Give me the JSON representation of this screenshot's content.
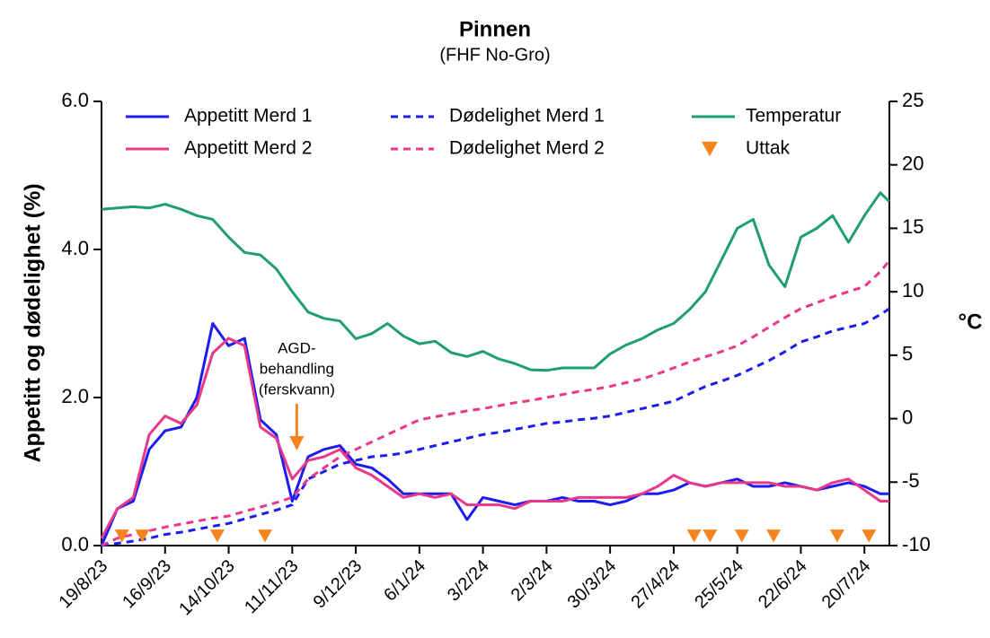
{
  "chart_data": {
    "type": "line",
    "title": "Pinnen",
    "subtitle": "(FHF No-Gro)",
    "y_label": "Appetitt og dødelighet (%)",
    "y2_label": "°C",
    "x": [
      "2023-08-19",
      "2023-08-26",
      "2023-09-02",
      "2023-09-09",
      "2023-09-16",
      "2023-09-23",
      "2023-09-30",
      "2023-10-07",
      "2023-10-14",
      "2023-10-21",
      "2023-10-28",
      "2023-11-04",
      "2023-11-11",
      "2023-11-18",
      "2023-11-25",
      "2023-12-02",
      "2023-12-09",
      "2023-12-16",
      "2023-12-23",
      "2023-12-30",
      "2024-01-06",
      "2024-01-13",
      "2024-01-20",
      "2024-01-27",
      "2024-02-03",
      "2024-02-10",
      "2024-02-17",
      "2024-02-24",
      "2024-03-02",
      "2024-03-09",
      "2024-03-16",
      "2024-03-23",
      "2024-03-30",
      "2024-04-06",
      "2024-04-13",
      "2024-04-20",
      "2024-04-27",
      "2024-05-04",
      "2024-05-11",
      "2024-05-18",
      "2024-05-25",
      "2024-06-01",
      "2024-06-08",
      "2024-06-15",
      "2024-06-22",
      "2024-06-29",
      "2024-07-06",
      "2024-07-13",
      "2024-07-20",
      "2024-07-27",
      "2024-07-31"
    ],
    "xlim": [
      "2023-08-19",
      "2024-07-31"
    ],
    "xticks": [
      {
        "value": "2023-08-19",
        "label": "19/8/23"
      },
      {
        "value": "2023-09-16",
        "label": "16/9/23"
      },
      {
        "value": "2023-10-14",
        "label": "14/10/23"
      },
      {
        "value": "2023-11-11",
        "label": "11/11/23"
      },
      {
        "value": "2023-12-09",
        "label": "9/12/23"
      },
      {
        "value": "2024-01-06",
        "label": "6/1/24"
      },
      {
        "value": "2024-02-03",
        "label": "3/2/24"
      },
      {
        "value": "2024-03-02",
        "label": "2/3/24"
      },
      {
        "value": "2024-03-30",
        "label": "30/3/24"
      },
      {
        "value": "2024-04-27",
        "label": "27/4/24"
      },
      {
        "value": "2024-05-25",
        "label": "25/5/24"
      },
      {
        "value": "2024-06-22",
        "label": "22/6/24"
      },
      {
        "value": "2024-07-20",
        "label": "20/7/24"
      }
    ],
    "ylim": [
      0,
      6
    ],
    "yticks": [
      {
        "value": 0,
        "label": "0.0"
      },
      {
        "value": 2,
        "label": "2.0"
      },
      {
        "value": 4,
        "label": "4.0"
      },
      {
        "value": 6,
        "label": "6.0"
      }
    ],
    "y2lim": [
      -10,
      25
    ],
    "y2ticks": [
      -10,
      -5,
      0,
      5,
      10,
      15,
      20,
      25
    ],
    "series": [
      {
        "name": "Appetitt Merd 1",
        "color": "#1c1cf0",
        "style": "solid",
        "values": [
          0.0,
          0.5,
          0.6,
          1.3,
          1.55,
          1.6,
          2.0,
          3.0,
          2.7,
          2.8,
          1.7,
          1.5,
          0.6,
          1.2,
          1.3,
          1.35,
          1.1,
          1.05,
          0.9,
          0.7,
          0.7,
          0.7,
          0.7,
          0.35,
          0.65,
          0.6,
          0.55,
          0.6,
          0.6,
          0.65,
          0.6,
          0.6,
          0.55,
          0.6,
          0.7,
          0.7,
          0.75,
          0.85,
          0.8,
          0.85,
          0.9,
          0.8,
          0.8,
          0.85,
          0.8,
          0.75,
          0.8,
          0.85,
          0.8,
          0.7,
          0.7
        ]
      },
      {
        "name": "Appetitt Merd 2",
        "color": "#e8388a",
        "style": "solid",
        "values": [
          0.1,
          0.5,
          0.65,
          1.5,
          1.75,
          1.65,
          1.9,
          2.6,
          2.8,
          2.7,
          1.6,
          1.45,
          0.9,
          1.15,
          1.2,
          1.3,
          1.05,
          0.95,
          0.8,
          0.65,
          0.7,
          0.65,
          0.7,
          0.55,
          0.55,
          0.55,
          0.5,
          0.6,
          0.6,
          0.6,
          0.65,
          0.65,
          0.65,
          0.65,
          0.7,
          0.8,
          0.95,
          0.85,
          0.8,
          0.85,
          0.85,
          0.85,
          0.85,
          0.8,
          0.8,
          0.75,
          0.85,
          0.9,
          0.75,
          0.6,
          0.6
        ]
      },
      {
        "name": "Dødelighet Merd 1",
        "color": "#1c1cf0",
        "style": "dashed",
        "values": [
          0.0,
          0.03,
          0.06,
          0.1,
          0.15,
          0.18,
          0.22,
          0.26,
          0.3,
          0.36,
          0.42,
          0.48,
          0.55,
          0.9,
          1.0,
          1.1,
          1.15,
          1.2,
          1.22,
          1.25,
          1.3,
          1.35,
          1.4,
          1.45,
          1.5,
          1.53,
          1.57,
          1.61,
          1.65,
          1.67,
          1.7,
          1.72,
          1.75,
          1.8,
          1.85,
          1.9,
          1.95,
          2.05,
          2.15,
          2.22,
          2.3,
          2.4,
          2.5,
          2.62,
          2.75,
          2.82,
          2.9,
          2.95,
          3.0,
          3.12,
          3.2
        ]
      },
      {
        "name": "Dødelighet Merd 2",
        "color": "#e8388a",
        "style": "dashed",
        "values": [
          0.0,
          0.1,
          0.15,
          0.2,
          0.25,
          0.29,
          0.33,
          0.37,
          0.4,
          0.46,
          0.52,
          0.58,
          0.65,
          0.9,
          1.05,
          1.2,
          1.3,
          1.4,
          1.5,
          1.6,
          1.7,
          1.74,
          1.78,
          1.82,
          1.85,
          1.89,
          1.93,
          1.96,
          2.0,
          2.04,
          2.08,
          2.11,
          2.15,
          2.2,
          2.25,
          2.32,
          2.4,
          2.48,
          2.55,
          2.62,
          2.7,
          2.82,
          2.95,
          3.08,
          3.2,
          3.28,
          3.36,
          3.43,
          3.5,
          3.7,
          3.85
        ]
      },
      {
        "name": "Temperatur",
        "color": "#1f9e6e",
        "style": "solid",
        "axis": "y2",
        "values": [
          16.5,
          16.6,
          16.7,
          16.6,
          16.9,
          16.5,
          16.0,
          15.7,
          14.3,
          13.1,
          12.9,
          11.8,
          10.0,
          8.4,
          7.9,
          7.7,
          6.3,
          6.7,
          7.5,
          6.5,
          5.9,
          6.1,
          5.2,
          4.9,
          5.3,
          4.7,
          4.35,
          3.85,
          3.8,
          4.0,
          4.0,
          4.0,
          5.1,
          5.8,
          6.3,
          7.0,
          7.5,
          8.6,
          10.0,
          12.5,
          15.0,
          15.7,
          12.1,
          10.4,
          14.3,
          15.0,
          16.0,
          13.9,
          16.0,
          17.8,
          17.1
        ]
      },
      {
        "name": "Uttak",
        "color": "#f5841f",
        "marker": "triangle",
        "x": [
          "2023-08-28",
          "2023-09-06",
          "2023-10-09",
          "2023-10-30",
          "2024-05-06",
          "2024-05-13",
          "2024-05-27",
          "2024-06-10",
          "2024-07-08",
          "2024-07-22"
        ],
        "values": [
          0.13,
          0.13,
          0.13,
          0.13,
          0.13,
          0.13,
          0.13,
          0.13,
          0.13,
          0.13
        ]
      }
    ],
    "annotation": {
      "text": [
        "AGD-",
        "behandling",
        "(ferskvann)"
      ],
      "x": "2023-11-13",
      "color": "#f5841f"
    }
  }
}
